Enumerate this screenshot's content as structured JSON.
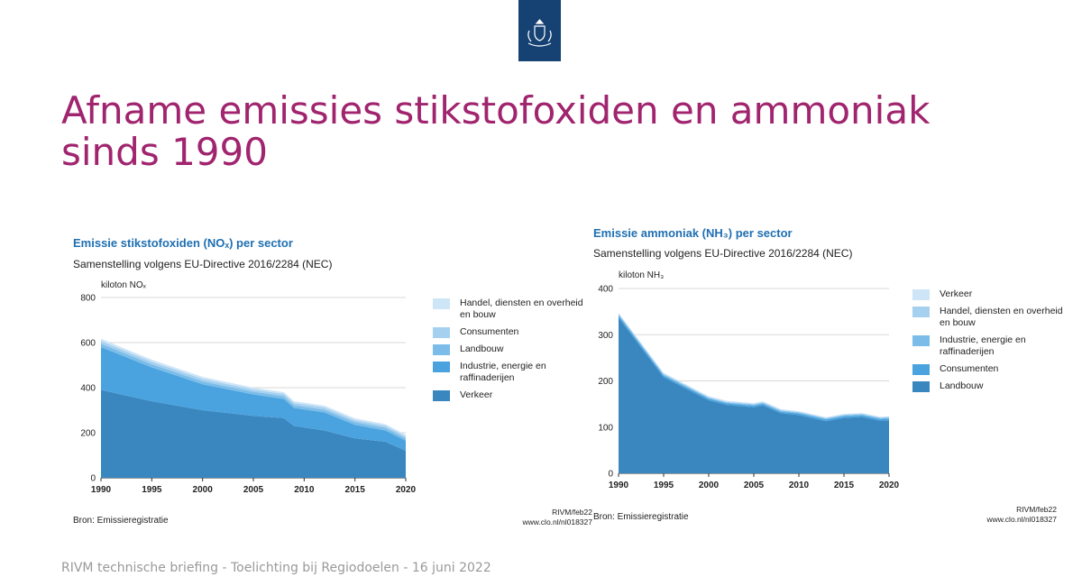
{
  "slide": {
    "title": "Afname emissies stikstofoxiden en ammoniak sinds 1990",
    "footer": "RIVM technische briefing - Toelichting bij Regiodoelen - 16 juni 2022"
  },
  "colors": {
    "logo": "#154273",
    "title": "#a0246e",
    "chart_title": "#1f6fb2"
  },
  "logo": {
    "icon": "coat-of-arms-icon"
  },
  "charts": [
    {
      "title": "Emissie stikstofoxiden (NOₓ) per sector",
      "subtitle": "Samenstelling volgens EU-Directive 2016/2284 (NEC)",
      "unit": "kiloton NOₓ",
      "source": "Bron: Emissieregistratie",
      "credit1": "RIVM/feb22",
      "credit2": "www.clo.nl/nl018327"
    },
    {
      "title": "Emissie ammoniak (NH₃) per sector",
      "subtitle": "Samenstelling volgens EU-Directive 2016/2284 (NEC)",
      "unit": "kiloton NH₃",
      "source": "Bron: Emissieregistratie",
      "credit1": "RIVM/feb22",
      "credit2": "www.clo.nl/nl018327"
    }
  ],
  "chart_data": [
    {
      "type": "area",
      "stacked": true,
      "title": "Emissie stikstofoxiden (NOₓ) per sector",
      "subtitle": "Samenstelling volgens EU-Directive 2016/2284 (NEC)",
      "ylabel": "kiloton NOₓ",
      "x": [
        1990,
        1995,
        2000,
        2005,
        2008,
        2009,
        2012,
        2015,
        2018,
        2020
      ],
      "xticks": [
        1990,
        1995,
        2000,
        2005,
        2010,
        2015,
        2020
      ],
      "yticks": [
        0,
        200,
        400,
        600,
        800
      ],
      "xlim": [
        1990,
        2020
      ],
      "ylim": [
        0,
        800
      ],
      "grid": "horizontal",
      "legend_position": "right",
      "series": [
        {
          "name": "Verkeer",
          "color": "#3a87c0",
          "values": [
            390,
            340,
            300,
            275,
            265,
            230,
            210,
            175,
            160,
            120
          ]
        },
        {
          "name": "Industrie, energie en raffinaderijen",
          "color": "#4aa3df",
          "values": [
            190,
            150,
            115,
            95,
            85,
            80,
            80,
            60,
            50,
            45
          ]
        },
        {
          "name": "Landbouw",
          "color": "#7bbde8",
          "values": [
            15,
            14,
            13,
            12,
            12,
            12,
            12,
            12,
            12,
            11
          ]
        },
        {
          "name": "Consumenten",
          "color": "#a6d0f0",
          "values": [
            12,
            11,
            11,
            10,
            10,
            10,
            10,
            9,
            9,
            8
          ]
        },
        {
          "name": "Handel, diensten en overheid en bouw",
          "color": "#cde5f7",
          "values": [
            10,
            9,
            9,
            8,
            8,
            8,
            8,
            8,
            7,
            7
          ]
        }
      ]
    },
    {
      "type": "area",
      "stacked": true,
      "title": "Emissie ammoniak (NH₃) per sector",
      "subtitle": "Samenstelling volgens EU-Directive 2016/2284 (NEC)",
      "ylabel": "kiloton NH₃",
      "x": [
        1990,
        1995,
        2000,
        2002,
        2005,
        2006,
        2008,
        2010,
        2013,
        2015,
        2017,
        2019,
        2020
      ],
      "xticks": [
        1990,
        1995,
        2000,
        2005,
        2010,
        2015,
        2020
      ],
      "yticks": [
        0,
        100,
        200,
        300,
        400
      ],
      "xlim": [
        1990,
        2020
      ],
      "ylim": [
        0,
        400
      ],
      "grid": "horizontal",
      "legend_position": "right",
      "series": [
        {
          "name": "Landbouw",
          "color": "#3a87c0",
          "values": [
            337,
            208,
            158,
            148,
            143,
            147,
            130,
            126,
            113,
            120,
            122,
            114,
            115
          ]
        },
        {
          "name": "Consumenten",
          "color": "#4aa3df",
          "values": [
            4,
            3.5,
            3.5,
            3.5,
            3.5,
            3.5,
            3.5,
            3.5,
            3.5,
            3.5,
            3.5,
            3.5,
            3.5
          ]
        },
        {
          "name": "Industrie, energie en raffinaderijen",
          "color": "#7bbde8",
          "values": [
            3,
            2.5,
            2,
            2,
            2,
            2,
            2,
            2,
            2,
            2,
            2,
            2,
            2
          ]
        },
        {
          "name": "Handel, diensten en overheid en bouw",
          "color": "#a6d0f0",
          "values": [
            2,
            1.5,
            1.5,
            1.5,
            1.5,
            1.5,
            1.5,
            1.5,
            1.5,
            1.5,
            1.5,
            1.5,
            1.5
          ]
        },
        {
          "name": "Verkeer",
          "color": "#cde5f7",
          "values": [
            1,
            2,
            2,
            2,
            2,
            2,
            2,
            1.5,
            1.5,
            1.5,
            1.5,
            1.5,
            1.5
          ]
        }
      ]
    }
  ]
}
